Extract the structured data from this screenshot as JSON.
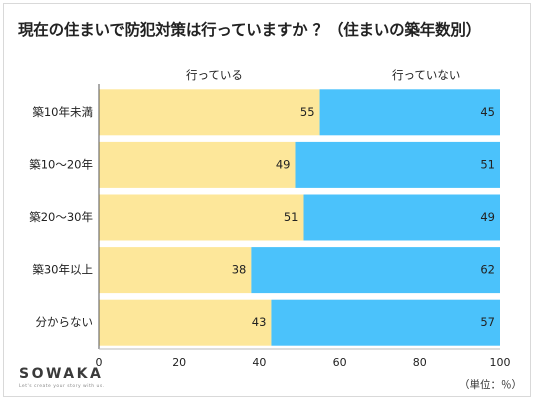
{
  "title": "現在の住まいで防犯対策は行っていますか ？（住まいの築年数別）",
  "legend": {
    "left": "行っている",
    "right": "行っていない"
  },
  "logo": {
    "name": "SOWAKA",
    "tagline": "Let's create your story with us."
  },
  "unit": "（単位：％）",
  "colors": {
    "doing": "#fde79a",
    "not_doing": "#4bc2fb",
    "text": "#222222",
    "axis": "#555555"
  },
  "chart_data": {
    "type": "bar",
    "orientation": "horizontal",
    "stacked": true,
    "title": "現在の住まいで防犯対策は行っていますか ？（住まいの築年数別）",
    "categories": [
      "築10年未満",
      "築10〜20年",
      "築20〜30年",
      "築30年以上",
      "分からない"
    ],
    "series": [
      {
        "name": "行っている",
        "values": [
          55,
          49,
          51,
          38,
          43
        ]
      },
      {
        "name": "行っていない",
        "values": [
          45,
          51,
          49,
          62,
          57
        ]
      }
    ],
    "xlim": [
      0,
      100
    ],
    "xticks": [
      0,
      20,
      40,
      60,
      80,
      100
    ],
    "grid": false,
    "legend_position": "top"
  }
}
